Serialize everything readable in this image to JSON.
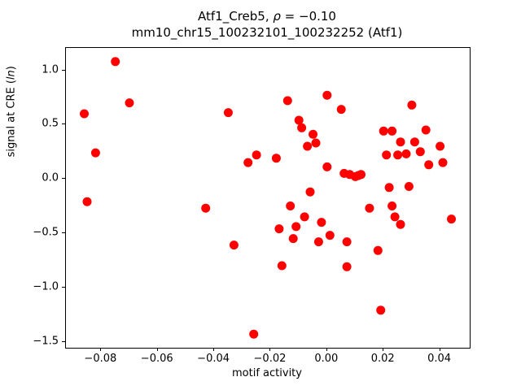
{
  "figure": {
    "title_line1_prefix": "Atf1_Creb5, ",
    "title_rho": "ρ",
    "title_line1_suffix": " = −0.10",
    "title_line2": "mm10_chr15_100232101_100232252 (Atf1)",
    "xlabel": "motif activity",
    "ylabel_prefix": "signal at CRE (",
    "ylabel_italic": "ln",
    "ylabel_suffix": ")"
  },
  "chart_data": {
    "type": "scatter",
    "title": "Atf1_Creb5, ρ = −0.10\nmm10_chr15_100232101_100232252 (Atf1)",
    "xlabel": "motif activity",
    "ylabel": "signal at CRE (ln)",
    "marker_color": "#ff0000",
    "marker_radius": 5.5,
    "grid": false,
    "legend": "none",
    "xlim": [
      -0.0925,
      0.0505
    ],
    "ylim": [
      -1.556,
      1.206
    ],
    "x_ticks": [
      -0.08,
      -0.06,
      -0.04,
      -0.02,
      0.0,
      0.02,
      0.04
    ],
    "x_tick_labels": [
      "−0.08",
      "−0.06",
      "−0.04",
      "−0.02",
      "0.00",
      "0.02",
      "0.04"
    ],
    "y_ticks": [
      -1.5,
      -1.0,
      -0.5,
      0.0,
      0.5,
      1.0
    ],
    "y_tick_labels": [
      "−1.5",
      "−1.0",
      "−0.5",
      "0.0",
      "0.5",
      "1.0"
    ],
    "points": [
      [
        -0.086,
        0.6
      ],
      [
        -0.085,
        -0.21
      ],
      [
        -0.082,
        0.24
      ],
      [
        -0.075,
        1.08
      ],
      [
        -0.07,
        0.7
      ],
      [
        -0.043,
        -0.27
      ],
      [
        -0.035,
        0.61
      ],
      [
        -0.033,
        -0.61
      ],
      [
        -0.028,
        0.15
      ],
      [
        -0.026,
        -1.43
      ],
      [
        -0.025,
        0.22
      ],
      [
        -0.018,
        0.19
      ],
      [
        -0.017,
        -0.46
      ],
      [
        -0.016,
        -0.8
      ],
      [
        -0.014,
        0.72
      ],
      [
        -0.013,
        -0.25
      ],
      [
        -0.012,
        -0.55
      ],
      [
        -0.011,
        -0.44
      ],
      [
        -0.01,
        0.54
      ],
      [
        -0.009,
        0.47
      ],
      [
        -0.008,
        -0.35
      ],
      [
        -0.007,
        0.3
      ],
      [
        -0.006,
        -0.12
      ],
      [
        -0.005,
        0.41
      ],
      [
        -0.004,
        0.33
      ],
      [
        -0.003,
        -0.58
      ],
      [
        -0.002,
        -0.4
      ],
      [
        0.0,
        0.77
      ],
      [
        0.0,
        0.11
      ],
      [
        0.001,
        -0.52
      ],
      [
        0.005,
        0.64
      ],
      [
        0.006,
        0.05
      ],
      [
        0.007,
        -0.58
      ],
      [
        0.007,
        -0.81
      ],
      [
        0.008,
        0.04
      ],
      [
        0.01,
        0.02
      ],
      [
        0.011,
        0.03
      ],
      [
        0.012,
        0.04
      ],
      [
        0.015,
        -0.27
      ],
      [
        0.018,
        -0.66
      ],
      [
        0.019,
        -1.21
      ],
      [
        0.02,
        0.44
      ],
      [
        0.021,
        0.22
      ],
      [
        0.022,
        -0.08
      ],
      [
        0.023,
        0.44
      ],
      [
        0.023,
        -0.25
      ],
      [
        0.024,
        -0.35
      ],
      [
        0.025,
        0.22
      ],
      [
        0.026,
        0.34
      ],
      [
        0.026,
        -0.42
      ],
      [
        0.028,
        0.23
      ],
      [
        0.029,
        -0.07
      ],
      [
        0.03,
        0.68
      ],
      [
        0.031,
        0.34
      ],
      [
        0.033,
        0.25
      ],
      [
        0.035,
        0.45
      ],
      [
        0.036,
        0.13
      ],
      [
        0.04,
        0.3
      ],
      [
        0.041,
        0.15
      ],
      [
        0.044,
        -0.37
      ]
    ]
  }
}
